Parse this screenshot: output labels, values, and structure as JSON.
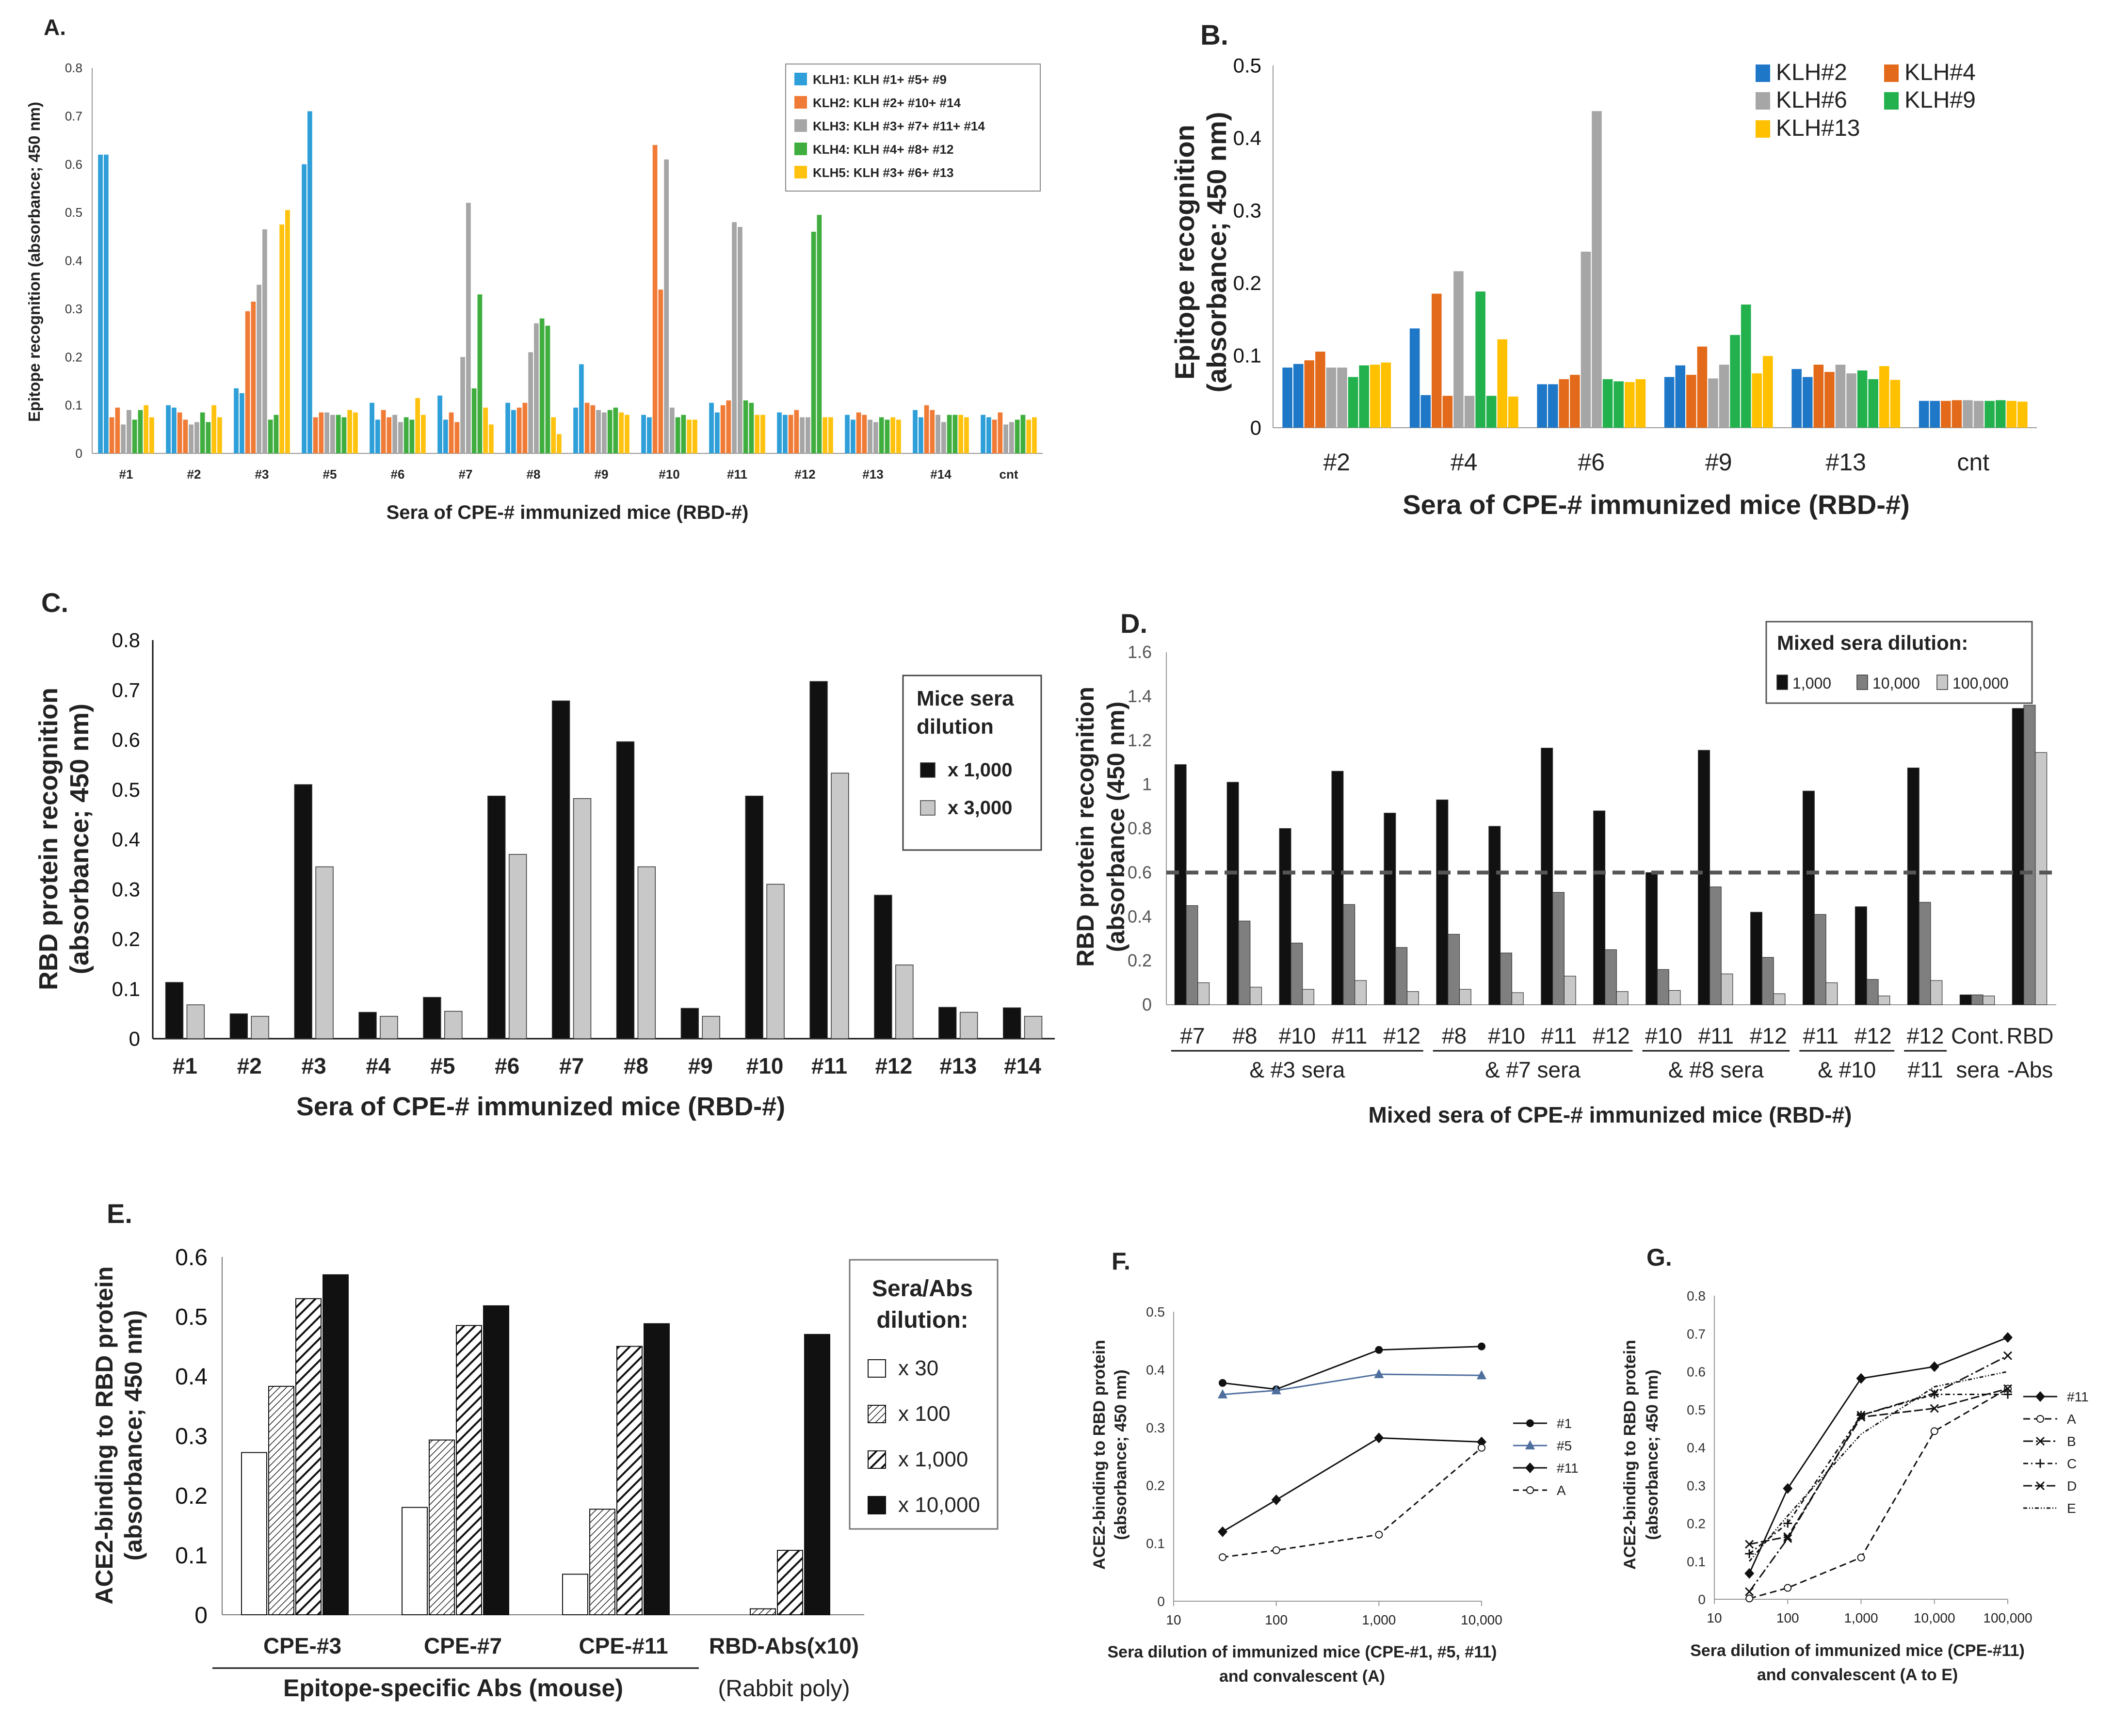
{
  "colors": {
    "klh_blue": "#2E9FD8",
    "klh_orange": "#F07B36",
    "klh_gray": "#A6A6A6",
    "klh_green": "#3FAE3F",
    "klh_yellow": "#FFC20E",
    "b_blue": "#1F77C8",
    "b_orange": "#E36A1A",
    "b_gray": "#A6A6A6",
    "b_green": "#22B14C",
    "b_yellow": "#FFC000",
    "black": "#111111",
    "light_gray": "#C8C8C8",
    "mid_gray": "#7F7F7F",
    "dashed_line": "#555555"
  },
  "chart_data": [
    {
      "panel": "A.",
      "type": "bar",
      "xlabel": "Sera of CPE-# immunized mice (RBD-#)",
      "ylabel": "Epitope recognition (absorbance; 450 nm)",
      "ylim": [
        0,
        0.8
      ],
      "yticks": [
        "0",
        "0.1",
        "0.2",
        "0.3",
        "0.4",
        "0.5",
        "0.6",
        "0.7",
        "0.8"
      ],
      "categories": [
        "#1",
        "#2",
        "#3",
        "#5",
        "#6",
        "#7",
        "#8",
        "#9",
        "#10",
        "#11",
        "#12",
        "#13",
        "#14",
        "cnt"
      ],
      "legend": [
        {
          "label": "KLH1:  KLH #1+ #5+ #9",
          "color": "#2E9FD8"
        },
        {
          "label": "KLH2:  KLH #2+ #10+ #14",
          "color": "#F07B36"
        },
        {
          "label": "KLH3:  KLH #3+ #7+ #11+ #14",
          "color": "#A6A6A6"
        },
        {
          "label": "KLH4:  KLH #4+ #8+ #12",
          "color": "#3FAE3F"
        },
        {
          "label": "KLH5:  KLH #3+ #6+ #13",
          "color": "#FFC20E"
        }
      ],
      "series": [
        {
          "name": "KLH1",
          "values": [
            [
              0.62,
              0.62
            ],
            [
              0.1,
              0.095
            ],
            [
              0.135,
              0.125
            ],
            [
              0.6,
              0.71
            ],
            [
              0.105,
              0.07
            ],
            [
              0.12,
              0.07
            ],
            [
              0.105,
              0.09
            ],
            [
              0.095,
              0.185
            ],
            [
              0.08,
              0.075
            ],
            [
              0.105,
              0.085
            ],
            [
              0.085,
              0.08
            ],
            [
              0.08,
              0.07
            ],
            [
              0.09,
              0.075
            ],
            [
              0.08,
              0.075
            ]
          ]
        },
        {
          "name": "KLH2",
          "values": [
            [
              0.075,
              0.095
            ],
            [
              0.085,
              0.07
            ],
            [
              0.295,
              0.315
            ],
            [
              0.075,
              0.085
            ],
            [
              0.09,
              0.075
            ],
            [
              0.085,
              0.065
            ],
            [
              0.095,
              0.105
            ],
            [
              0.105,
              0.1
            ],
            [
              0.64,
              0.34
            ],
            [
              0.1,
              0.11
            ],
            [
              0.08,
              0.09
            ],
            [
              0.085,
              0.08
            ],
            [
              0.1,
              0.09
            ],
            [
              0.07,
              0.085
            ]
          ]
        },
        {
          "name": "KLH3",
          "values": [
            [
              0.06,
              0.09
            ],
            [
              0.06,
              0.065
            ],
            [
              0.35,
              0.465
            ],
            [
              0.085,
              0.08
            ],
            [
              0.08,
              0.065
            ],
            [
              0.2,
              0.52
            ],
            [
              0.21,
              0.27
            ],
            [
              0.09,
              0.085
            ],
            [
              0.61,
              0.095
            ],
            [
              0.48,
              0.47
            ],
            [
              0.075,
              0.075
            ],
            [
              0.07,
              0.065
            ],
            [
              0.08,
              0.065
            ],
            [
              0.06,
              0.065
            ]
          ]
        },
        {
          "name": "KLH4",
          "values": [
            [
              0.07,
              0.09
            ],
            [
              0.085,
              0.065
            ],
            [
              0.07,
              0.08
            ],
            [
              0.08,
              0.075
            ],
            [
              0.075,
              0.07
            ],
            [
              0.135,
              0.33
            ],
            [
              0.28,
              0.265
            ],
            [
              0.09,
              0.095
            ],
            [
              0.075,
              0.08
            ],
            [
              0.11,
              0.105
            ],
            [
              0.46,
              0.495
            ],
            [
              0.075,
              0.07
            ],
            [
              0.08,
              0.08
            ],
            [
              0.07,
              0.08
            ]
          ]
        },
        {
          "name": "KLH5",
          "values": [
            [
              0.1,
              0.075
            ],
            [
              0.1,
              0.075
            ],
            [
              0.475,
              0.505
            ],
            [
              0.09,
              0.085
            ],
            [
              0.115,
              0.08
            ],
            [
              0.095,
              0.06
            ],
            [
              0.075,
              0.04
            ],
            [
              0.085,
              0.08
            ],
            [
              0.07,
              0.07
            ],
            [
              0.08,
              0.08
            ],
            [
              0.075,
              0.075
            ],
            [
              0.075,
              0.07
            ],
            [
              0.08,
              0.075
            ],
            [
              0.07,
              0.075
            ]
          ]
        }
      ]
    },
    {
      "panel": "B.",
      "type": "bar",
      "xlabel": "Sera of CPE-# immunized mice (RBD-#)",
      "ylabel": [
        "Epitope recognition",
        "(absorbance; 450 nm)"
      ],
      "ylim": [
        0,
        0.5
      ],
      "yticks": [
        "0",
        "0.1",
        "0.2",
        "0.3",
        "0.4",
        "0.5"
      ],
      "categories": [
        "#2",
        "#4",
        "#6",
        "#9",
        "#13",
        "cnt"
      ],
      "legend": [
        {
          "label": "KLH#2",
          "color": "#1F77C8"
        },
        {
          "label": "KLH#4",
          "color": "#E36A1A"
        },
        {
          "label": "KLH#6",
          "color": "#A6A6A6"
        },
        {
          "label": "KLH#9",
          "color": "#22B14C"
        },
        {
          "label": "KLH#13",
          "color": "#FFC000"
        }
      ],
      "series": [
        {
          "name": "KLH#2",
          "values": [
            [
              0.083,
              0.088
            ],
            [
              0.137,
              0.045
            ],
            [
              0.06,
              0.06
            ],
            [
              0.07,
              0.086
            ],
            [
              0.081,
              0.07
            ],
            [
              0.037,
              0.037
            ]
          ]
        },
        {
          "name": "KLH#4",
          "values": [
            [
              0.093,
              0.105
            ],
            [
              0.185,
              0.044
            ],
            [
              0.067,
              0.073
            ],
            [
              0.073,
              0.112
            ],
            [
              0.087,
              0.077
            ],
            [
              0.037,
              0.038
            ]
          ]
        },
        {
          "name": "KLH#6",
          "values": [
            [
              0.083,
              0.083
            ],
            [
              0.216,
              0.044
            ],
            [
              0.243,
              0.437
            ],
            [
              0.068,
              0.087
            ],
            [
              0.087,
              0.075
            ],
            [
              0.038,
              0.037
            ]
          ]
        },
        {
          "name": "KLH#9",
          "values": [
            [
              0.07,
              0.086
            ],
            [
              0.188,
              0.044
            ],
            [
              0.067,
              0.064
            ],
            [
              0.128,
              0.17
            ],
            [
              0.079,
              0.067
            ],
            [
              0.037,
              0.038
            ]
          ]
        },
        {
          "name": "KLH#13",
          "values": [
            [
              0.087,
              0.09
            ],
            [
              0.122,
              0.043
            ],
            [
              0.063,
              0.067
            ],
            [
              0.075,
              0.099
            ],
            [
              0.085,
              0.066
            ],
            [
              0.037,
              0.036
            ]
          ]
        }
      ]
    },
    {
      "panel": "C.",
      "type": "bar",
      "xlabel": "Sera of CPE-# immunized mice (RBD-#)",
      "ylabel": [
        "RBD protein recognition",
        "(absorbance; 450 nm)"
      ],
      "ylim": [
        0,
        0.8
      ],
      "yticks": [
        "0",
        "0.1",
        "0.2",
        "0.3",
        "0.4",
        "0.5",
        "0.6",
        "0.7",
        "0.8"
      ],
      "categories": [
        "#1",
        "#2",
        "#3",
        "#4",
        "#5",
        "#6",
        "#7",
        "#8",
        "#9",
        "#10",
        "#11",
        "#12",
        "#13",
        "#14"
      ],
      "legend_title": [
        "Mice sera",
        "dilution"
      ],
      "series": [
        {
          "name": "x 1,000",
          "color": "#111111",
          "values": [
            0.113,
            0.05,
            0.51,
            0.053,
            0.083,
            0.487,
            0.678,
            0.596,
            0.061,
            0.487,
            0.717,
            0.288,
            0.063,
            0.062
          ]
        },
        {
          "name": "x 3,000",
          "color": "#C8C8C8",
          "values": [
            0.068,
            0.045,
            0.345,
            0.045,
            0.055,
            0.37,
            0.482,
            0.345,
            0.045,
            0.31,
            0.533,
            0.148,
            0.053,
            0.045
          ]
        }
      ]
    },
    {
      "panel": "D.",
      "type": "bar",
      "xlabel": "Mixed sera of CPE-# immunized mice (RBD-#)",
      "ylabel": [
        "RBD protein recognition",
        "(absorbance (450 nm)"
      ],
      "ylim": [
        0,
        1.6
      ],
      "yticks": [
        "0",
        "0.2",
        "0.4",
        "0.6",
        "0.8",
        "1",
        "1.2",
        "1.4",
        "1.6"
      ],
      "threshold": 0.6,
      "legend_title": "Mixed sera dilution:",
      "categories": [
        "#7",
        "#8",
        "#10",
        "#11",
        "#12",
        "#8",
        "#10",
        "#11",
        "#12",
        "#10",
        "#11",
        "#12",
        "#11",
        "#12",
        "#12",
        "Cont.",
        "RBD"
      ],
      "categories_line2": [
        "",
        "",
        "",
        "",
        "",
        "",
        "",
        "",
        "",
        "",
        "",
        "",
        "",
        "",
        "#11",
        "sera",
        "-Abs"
      ],
      "groups": [
        {
          "label": "& #3 sera"
        },
        {
          "label": "& #7 sera"
        },
        {
          "label": "& #8 sera"
        },
        {
          "label": "& #10"
        }
      ],
      "series": [
        {
          "name": "1,000",
          "color": "#111111",
          "values": [
            1.09,
            1.01,
            0.8,
            1.06,
            0.87,
            0.93,
            0.81,
            1.165,
            0.88,
            0.6,
            1.155,
            0.42,
            0.97,
            0.445,
            1.075,
            0.045,
            1.345
          ]
        },
        {
          "name": "10,000",
          "color": "#7F7F7F",
          "values": [
            0.45,
            0.38,
            0.28,
            0.455,
            0.26,
            0.32,
            0.235,
            0.51,
            0.25,
            0.16,
            0.535,
            0.215,
            0.41,
            0.115,
            0.465,
            0.045,
            1.36
          ]
        },
        {
          "name": "100,000",
          "color": "#C8C8C8",
          "values": [
            0.1,
            0.08,
            0.07,
            0.11,
            0.06,
            0.07,
            0.055,
            0.13,
            0.06,
            0.065,
            0.14,
            0.05,
            0.1,
            0.04,
            0.11,
            0.04,
            1.145
          ]
        }
      ]
    },
    {
      "panel": "E.",
      "type": "bar",
      "ylabel": [
        "ACE2-binding to RBD protein",
        "(absorbance; 450 nm)"
      ],
      "ylim": [
        0,
        0.6
      ],
      "yticks": [
        "0",
        "0.1",
        "0.2",
        "0.3",
        "0.4",
        "0.5",
        "0.6"
      ],
      "categories": [
        "CPE-#3",
        "CPE-#7",
        "CPE-#11",
        "RBD-Abs(x10)"
      ],
      "group_caption": "Epitope-specific Abs (mouse)",
      "side_caption": "(Rabbit poly)",
      "legend_title": [
        "Sera/Abs",
        "dilution:"
      ],
      "series": [
        {
          "name": "x 30",
          "pattern": "white",
          "values": [
            0.272,
            0.18,
            0.068,
            0
          ]
        },
        {
          "name": "x 100",
          "pattern": "finehatch",
          "values": [
            0.383,
            0.293,
            0.177,
            0.01
          ]
        },
        {
          "name": "x 1,000",
          "pattern": "hatch",
          "values": [
            0.53,
            0.485,
            0.45,
            0.108
          ]
        },
        {
          "name": "x 10,000",
          "pattern": "black",
          "values": [
            0.57,
            0.518,
            0.488,
            0.47
          ]
        }
      ]
    },
    {
      "panel": "F.",
      "type": "line",
      "xscale": "log",
      "xlim": [
        10,
        10000
      ],
      "xticks": [
        "10",
        "100",
        "1,000",
        "10,000"
      ],
      "x": [
        30,
        100,
        1000,
        10000
      ],
      "ylim": [
        0,
        0.5
      ],
      "yticks": [
        "0",
        "0.1",
        "0.2",
        "0.3",
        "0.4",
        "0.5"
      ],
      "ylabel": [
        "ACE2-binding to RBD protein",
        "(absorbance; 450 nm)"
      ],
      "xlabel": [
        "Sera dilution of immunized mice (CPE-#1, #5, #11)",
        "and convalescent (A)"
      ],
      "series": [
        {
          "name": "#1",
          "style": "solid",
          "marker": "dot",
          "color": "#111111",
          "values": [
            0.377,
            0.366,
            0.434,
            0.44
          ]
        },
        {
          "name": "#5",
          "style": "solid",
          "marker": "triangle",
          "color": "#4E6E9E",
          "values": [
            0.357,
            0.364,
            0.392,
            0.39
          ]
        },
        {
          "name": "#11",
          "style": "solid",
          "marker": "diamond",
          "color": "#111111",
          "values": [
            0.12,
            0.175,
            0.282,
            0.275
          ]
        },
        {
          "name": "A",
          "style": "dashed",
          "marker": "circle",
          "color": "#111111",
          "values": [
            0.076,
            0.088,
            0.115,
            0.265
          ]
        }
      ]
    },
    {
      "panel": "G.",
      "type": "line",
      "xscale": "log",
      "xlim": [
        10,
        100000
      ],
      "xticks": [
        "10",
        "100",
        "1,000",
        "10,000",
        "100,000"
      ],
      "x": [
        30,
        100,
        1000,
        10000,
        100000
      ],
      "ylim": [
        0,
        0.8
      ],
      "yticks": [
        "0",
        "0.1",
        "0.2",
        "0.3",
        "0.4",
        "0.5",
        "0.6",
        "0.7",
        "0.8"
      ],
      "ylabel": [
        "ACE2-binding to RBD protein",
        "(absorbance; 450 nm)"
      ],
      "xlabel": [
        "Sera dilution of immunized mice (CPE-#11)",
        "and convalescent (A to E)"
      ],
      "series": [
        {
          "name": "#11",
          "style": "solid",
          "marker": "diamond",
          "values": [
            0.068,
            0.292,
            0.582,
            0.613,
            0.69
          ]
        },
        {
          "name": "A",
          "style": "dash1",
          "marker": "circle",
          "values": [
            0.002,
            0.03,
            0.11,
            0.443,
            0.555
          ]
        },
        {
          "name": "B",
          "style": "dash2",
          "marker": "x",
          "values": [
            0.02,
            0.16,
            0.485,
            0.543,
            0.642
          ]
        },
        {
          "name": "C",
          "style": "dash3",
          "marker": "plus",
          "values": [
            0.12,
            0.2,
            0.485,
            0.54,
            0.54
          ]
        },
        {
          "name": "D",
          "style": "dash4",
          "marker": "x",
          "values": [
            0.145,
            0.165,
            0.48,
            0.503,
            0.555
          ]
        },
        {
          "name": "E",
          "style": "dash5",
          "marker": "none",
          "values": [
            0.1,
            0.22,
            0.435,
            0.56,
            0.6
          ]
        }
      ]
    }
  ]
}
